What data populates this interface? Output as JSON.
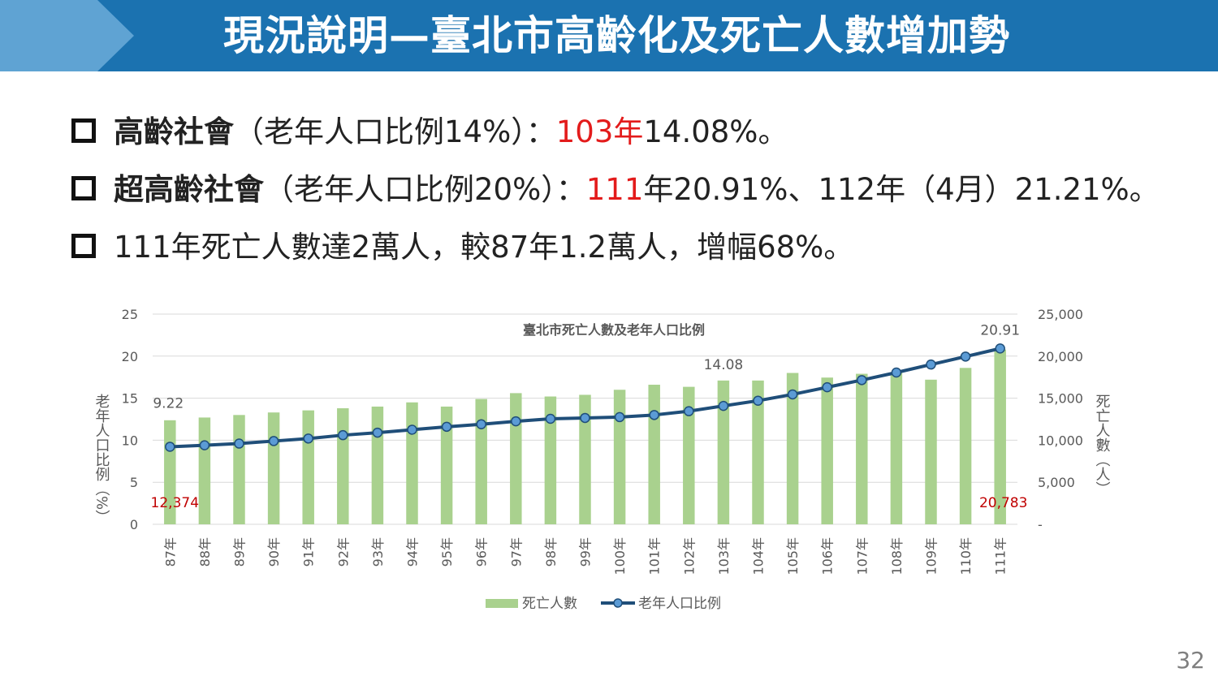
{
  "slide": {
    "title": "現況說明—臺北市高齡化及死亡人數增加勢",
    "page_number": "32"
  },
  "bullets": [
    {
      "bold": "高齡社會",
      "paren": "（老年人口比例14%）：",
      "red": "103年",
      "rest": "14.08%。"
    },
    {
      "bold": "超高齡社會",
      "paren": "（老年人口比例20%）：",
      "red": "111",
      "rest": "年20.91%、112年（4月）21.21%。"
    },
    {
      "bold": "",
      "paren": "",
      "red": "",
      "rest": "111年死亡人數達2萬人，較87年1.2萬人，增幅68%。"
    }
  ],
  "chart_data": {
    "type": "bar",
    "title": "臺北市死亡人數及老年人口比例",
    "categories": [
      "87年",
      "88年",
      "89年",
      "90年",
      "91年",
      "92年",
      "93年",
      "94年",
      "95年",
      "96年",
      "97年",
      "98年",
      "99年",
      "100年",
      "101年",
      "102年",
      "103年",
      "104年",
      "105年",
      "106年",
      "107年",
      "108年",
      "109年",
      "110年",
      "111年"
    ],
    "series": [
      {
        "name": "死亡人數",
        "axis": "right",
        "kind": "bar",
        "color": "#a9d18e",
        "values": [
          12374,
          12700,
          13000,
          13300,
          13550,
          13800,
          14000,
          14500,
          14000,
          14900,
          15600,
          15200,
          15400,
          16000,
          16600,
          16350,
          17100,
          17100,
          18000,
          17450,
          17900,
          18000,
          17200,
          18600,
          20783
        ]
      },
      {
        "name": "老年人口比例",
        "axis": "left",
        "kind": "line",
        "color": "#1f4e79",
        "marker_color": "#5b9bd5",
        "values": [
          9.22,
          9.4,
          9.6,
          9.9,
          10.2,
          10.6,
          10.9,
          11.25,
          11.6,
          11.9,
          12.25,
          12.55,
          12.65,
          12.75,
          13.0,
          13.45,
          14.08,
          14.7,
          15.45,
          16.3,
          17.15,
          18.05,
          19.0,
          19.95,
          20.91
        ]
      }
    ],
    "ylabel_left": "老年人口比例（%）",
    "ylabel_right": "死亡人數（人）",
    "ylim_left": [
      0,
      25
    ],
    "ylim_right": [
      0,
      25000
    ],
    "yticks_left": [
      "0",
      "5",
      "10",
      "15",
      "20",
      "25"
    ],
    "yticks_right": [
      "-",
      "5,000",
      "10,000",
      "15,000",
      "20,000",
      "25,000"
    ],
    "annotations": {
      "line_first": "9.22",
      "line_mid": "14.08",
      "line_last": "20.91",
      "bar_first": "12,374",
      "bar_last": "20,783",
      "annotation_color": "#c00000"
    },
    "legend_position": "bottom",
    "grid": true
  }
}
